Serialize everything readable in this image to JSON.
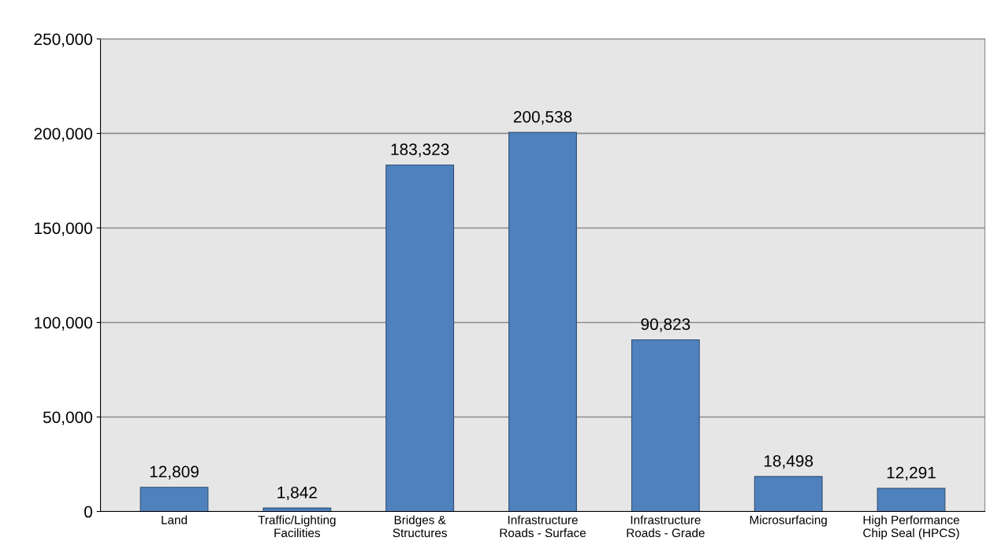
{
  "chart_data": {
    "type": "bar",
    "categories": [
      "Land",
      "Traffic/Lighting\nFacilities",
      "Bridges &\nStructures",
      "Infrastructure\nRoads - Surface",
      "Infrastructure\nRoads - Grade",
      "Microsurfacing",
      "High Performance\nChip Seal (HPCS)"
    ],
    "values": [
      12809,
      1842,
      183323,
      200538,
      90823,
      18498,
      12291
    ],
    "value_labels": [
      "12,809",
      "1,842",
      "183,323",
      "200,538",
      "90,823",
      "18,498",
      "12,291"
    ],
    "color": "#4f81bd",
    "ylim": [
      0,
      250000
    ],
    "yticks": [
      {
        "value": 0,
        "label": "0"
      },
      {
        "value": 50000,
        "label": "50,000"
      },
      {
        "value": 100000,
        "label": "100,000"
      },
      {
        "value": 150000,
        "label": "150,000"
      },
      {
        "value": 200000,
        "label": "200,000"
      },
      {
        "value": 250000,
        "label": "250,000"
      }
    ],
    "grid": "y"
  }
}
